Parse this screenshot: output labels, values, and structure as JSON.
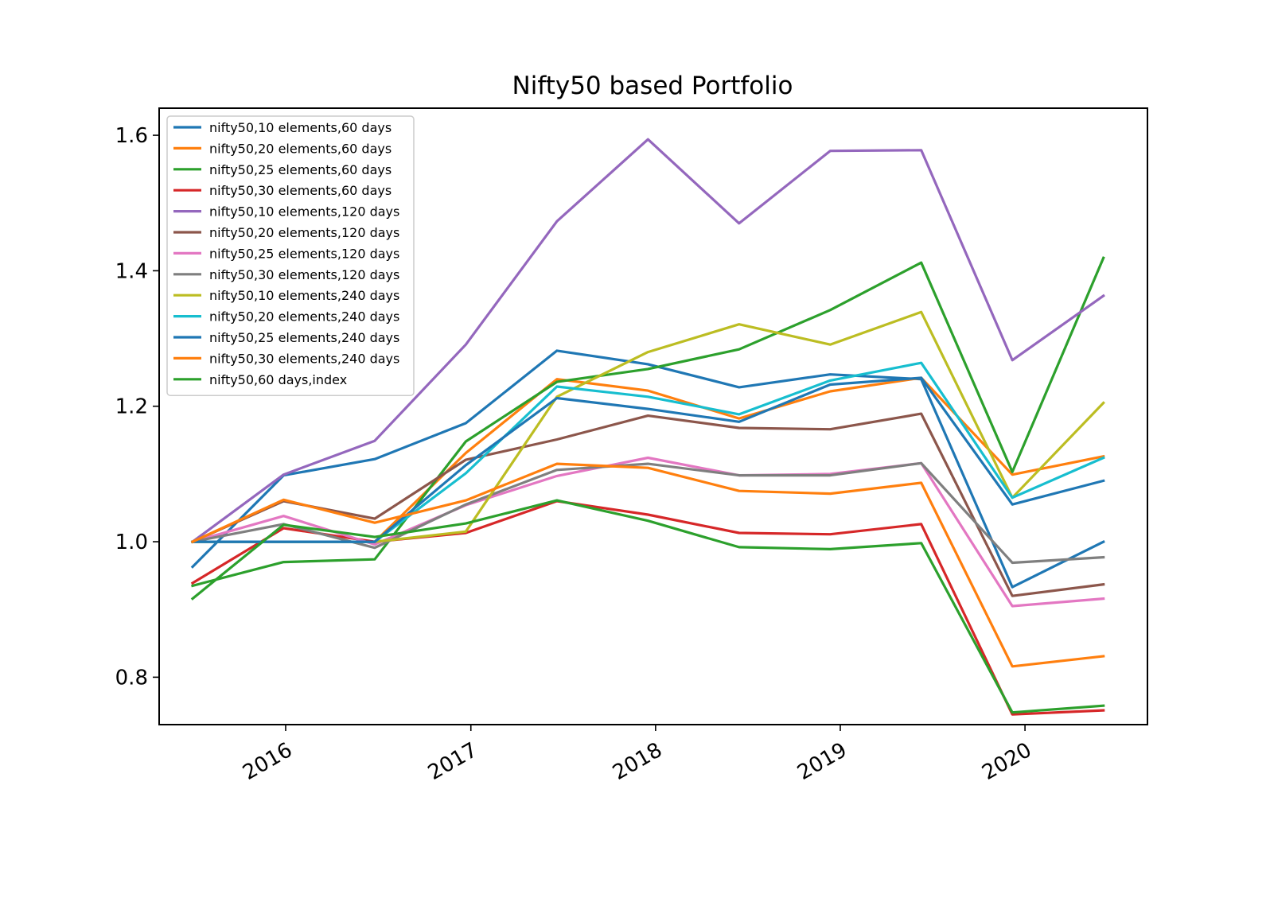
{
  "chart_data": {
    "type": "line",
    "title": "Nifty50 based Portfolio",
    "xlabel": "",
    "ylabel": "",
    "x": [
      "2015-07-01",
      "2015-12-28",
      "2016-06-25",
      "2016-12-22",
      "2017-06-20",
      "2017-12-17",
      "2018-06-15",
      "2018-12-12",
      "2019-06-10",
      "2019-12-07",
      "2020-06-04"
    ],
    "x_ticks": [
      "2016",
      "2017",
      "2018",
      "2019",
      "2020"
    ],
    "y_ticks": [
      "0.8",
      "1.0",
      "1.2",
      "1.4",
      "1.6"
    ],
    "ylim": [
      0.73,
      1.64
    ],
    "xlim": [
      "2015-04-26",
      "2020-08-30"
    ],
    "legend_position": "upper-left",
    "grid": false,
    "series": [
      {
        "name": "nifty50,10 elements,60 days",
        "color": "#1f77b4",
        "values": [
          0.963,
          1.098,
          1.122,
          1.175,
          1.282,
          1.262,
          1.228,
          1.247,
          1.24,
          0.933,
          1.0
        ]
      },
      {
        "name": "nifty50,20 elements,60 days",
        "color": "#ff7f0e",
        "values": [
          1.0,
          1.0,
          1.0,
          1.131,
          1.24,
          1.223,
          1.182,
          1.222,
          1.242,
          1.099,
          1.126
        ]
      },
      {
        "name": "nifty50,25 elements,60 days",
        "color": "#2ca02c",
        "values": [
          0.935,
          0.97,
          0.974,
          1.148,
          1.236,
          1.255,
          1.284,
          1.342,
          1.412,
          1.103,
          1.419
        ]
      },
      {
        "name": "nifty50,30 elements,60 days",
        "color": "#d62728",
        "values": [
          0.939,
          1.02,
          1.0,
          1.013,
          1.06,
          1.04,
          1.013,
          1.011,
          1.026,
          0.745,
          0.751
        ]
      },
      {
        "name": "nifty50,10 elements,120 days",
        "color": "#9467bd",
        "values": [
          1.0,
          1.099,
          1.149,
          1.291,
          1.473,
          1.594,
          1.47,
          1.577,
          1.578,
          1.268,
          1.363
        ]
      },
      {
        "name": "nifty50,20 elements,120 days",
        "color": "#8c564b",
        "values": [
          1.0,
          1.06,
          1.034,
          1.121,
          1.151,
          1.186,
          1.168,
          1.166,
          1.189,
          0.92,
          0.937
        ]
      },
      {
        "name": "nifty50,25 elements,120 days",
        "color": "#e377c2",
        "values": [
          1.0,
          1.038,
          0.996,
          1.054,
          1.097,
          1.124,
          1.098,
          1.1,
          1.116,
          0.905,
          0.916
        ]
      },
      {
        "name": "nifty50,30 elements,120 days",
        "color": "#7f7f7f",
        "values": [
          1.0,
          1.026,
          0.991,
          1.055,
          1.106,
          1.115,
          1.098,
          1.098,
          1.116,
          0.969,
          0.977
        ]
      },
      {
        "name": "nifty50,10 elements,240 days",
        "color": "#bcbd22",
        "values": [
          1.0,
          1.0,
          1.0,
          1.015,
          1.214,
          1.28,
          1.321,
          1.291,
          1.339,
          1.065,
          1.205
        ]
      },
      {
        "name": "nifty50,20 elements,240 days",
        "color": "#17becf",
        "values": [
          1.0,
          1.0,
          1.0,
          1.101,
          1.229,
          1.214,
          1.188,
          1.238,
          1.264,
          1.065,
          1.124
        ]
      },
      {
        "name": "nifty50,25 elements,240 days",
        "color": "#1f77b4",
        "values": [
          1.0,
          1.0,
          1.0,
          1.113,
          1.212,
          1.196,
          1.177,
          1.232,
          1.242,
          1.055,
          1.09
        ]
      },
      {
        "name": "nifty50,30 elements,240 days",
        "color": "#ff7f0e",
        "values": [
          1.0,
          1.062,
          1.028,
          1.061,
          1.115,
          1.109,
          1.075,
          1.071,
          1.087,
          0.816,
          0.831
        ]
      },
      {
        "name": "nifty50,60 days,index",
        "color": "#2ca02c",
        "values": [
          0.916,
          1.025,
          1.007,
          1.027,
          1.061,
          1.031,
          0.992,
          0.989,
          0.998,
          0.748,
          0.758
        ]
      }
    ]
  }
}
